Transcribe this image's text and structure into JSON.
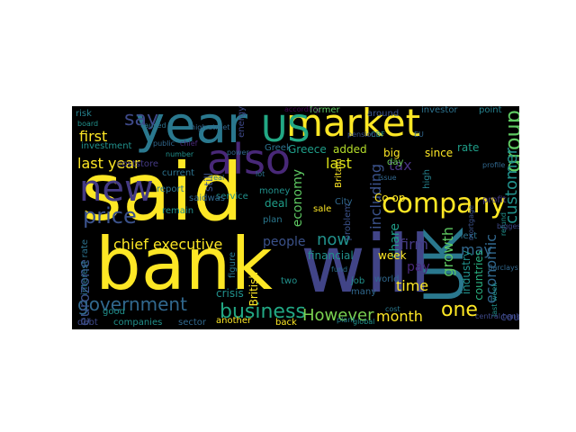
{
  "words": [
    {
      "text": "said",
      "color": "#fde725"
    },
    {
      "text": "bank",
      "color": "#fde725"
    },
    {
      "text": "will",
      "color": "#414487"
    },
    {
      "text": "year",
      "color": "#2a788e"
    },
    {
      "text": "UK",
      "color": "#2a788e"
    },
    {
      "text": "market",
      "color": "#fde725"
    },
    {
      "text": "US",
      "color": "#22a884"
    },
    {
      "text": "also",
      "color": "#482878"
    },
    {
      "text": "new",
      "color": "#443a83"
    },
    {
      "text": "company",
      "color": "#fde725"
    },
    {
      "text": "price",
      "color": "#3b528b"
    },
    {
      "text": "government",
      "color": "#31688e"
    },
    {
      "text": "business",
      "color": "#22a884"
    },
    {
      "text": "However",
      "color": "#7ad151"
    },
    {
      "text": "month",
      "color": "#fde725"
    },
    {
      "text": "one",
      "color": "#fde725"
    },
    {
      "text": "chief executive",
      "color": "#fde725"
    },
    {
      "text": "last year",
      "color": "#fde725"
    },
    {
      "text": "first",
      "color": "#fde725"
    },
    {
      "text": "say",
      "color": "#3e4989"
    },
    {
      "text": "group",
      "color": "#5ec962"
    },
    {
      "text": "customer",
      "color": "#21918c"
    },
    {
      "text": "growth",
      "color": "#5ec962"
    },
    {
      "text": "economy",
      "color": "#5ec962"
    },
    {
      "text": "last",
      "color": "#dde318"
    },
    {
      "text": "now",
      "color": "#21918c"
    },
    {
      "text": "people",
      "color": "#3b528b"
    },
    {
      "text": "eurozone",
      "color": "#3b528b"
    },
    {
      "text": "tax",
      "color": "#46327e"
    },
    {
      "text": "firm",
      "color": "#443a83"
    },
    {
      "text": "may",
      "color": "#31688e"
    },
    {
      "text": "including",
      "color": "#3b528b"
    },
    {
      "text": "share",
      "color": "#1f9e89"
    },
    {
      "text": "time",
      "color": "#fde725"
    },
    {
      "text": "pay",
      "color": "#482878"
    },
    {
      "text": "economic",
      "color": "#31688e"
    },
    {
      "text": "industry",
      "color": "#21918c"
    },
    {
      "text": "countries",
      "color": "#29af7f"
    },
    {
      "text": "country",
      "color": "#3e4989"
    },
    {
      "text": "interest rate",
      "color": "#2c728e"
    },
    {
      "text": "investment",
      "color": "#21918c"
    },
    {
      "text": "risk",
      "color": "#26828e"
    },
    {
      "text": "rate",
      "color": "#1f9e89"
    },
    {
      "text": "investor",
      "color": "#2c728e"
    },
    {
      "text": "former",
      "color": "#5ec962"
    },
    {
      "text": "around",
      "color": "#3b528b"
    },
    {
      "text": "point",
      "color": "#26828e"
    },
    {
      "text": "big",
      "color": "#fde725"
    },
    {
      "text": "since",
      "color": "#fde725"
    },
    {
      "text": "added",
      "color": "#b5de2b"
    },
    {
      "text": "Greece",
      "color": "#1f9e89"
    },
    {
      "text": "day",
      "color": "#6ece58"
    },
    {
      "text": "Co op",
      "color": "#fde725"
    },
    {
      "text": "coststore",
      "color": "#443a83"
    },
    {
      "text": "report",
      "color": "#2c728e"
    },
    {
      "text": "deal",
      "color": "#1f9e89"
    },
    {
      "text": "plan",
      "color": "#2a788e"
    },
    {
      "text": "financial",
      "color": "#21918c"
    },
    {
      "text": "job",
      "color": "#21918c"
    },
    {
      "text": "two",
      "color": "#21918c"
    },
    {
      "text": "crisis",
      "color": "#21918c"
    },
    {
      "text": "British",
      "color": "#fde725"
    },
    {
      "text": "sector",
      "color": "#31688e"
    },
    {
      "text": "another",
      "color": "#fde725"
    },
    {
      "text": "back",
      "color": "#fde725"
    },
    {
      "text": "companies",
      "color": "#21918c"
    },
    {
      "text": "debt",
      "color": "#3e4989"
    },
    {
      "text": "week",
      "color": "#fde725"
    },
    {
      "text": "last week",
      "color": "#21918c"
    },
    {
      "text": "next",
      "color": "#2c728e"
    },
    {
      "text": "high",
      "color": "#26828e"
    },
    {
      "text": "profit",
      "color": "#443a83"
    },
    {
      "text": "good",
      "color": "#21918c"
    },
    {
      "text": "service",
      "color": "#21918c"
    },
    {
      "text": "money",
      "color": "#21918c"
    },
    {
      "text": "sale",
      "color": "#fde725"
    },
    {
      "text": "many",
      "color": "#31688e"
    },
    {
      "text": "Britain",
      "color": "#fde725"
    },
    {
      "text": "problem",
      "color": "#3b528b"
    },
    {
      "text": "energy",
      "color": "#3e4989"
    },
    {
      "text": "Greek",
      "color": "#2c728e"
    },
    {
      "text": "board",
      "color": "#21918c"
    },
    {
      "text": "figure",
      "color": "#2a788e"
    },
    {
      "text": "still",
      "color": "#3b528b"
    },
    {
      "text": "remain",
      "color": "#21918c"
    },
    {
      "text": "saidwas",
      "color": "#31688e"
    },
    {
      "text": "public",
      "color": "#31688e"
    },
    {
      "text": "world",
      "color": "#31688e"
    },
    {
      "text": "City",
      "color": "#31688e"
    },
    {
      "text": "refund",
      "color": "#21918c"
    },
    {
      "text": "current",
      "color": "#2c728e"
    },
    {
      "text": "global",
      "color": "#21918c"
    },
    {
      "text": "real",
      "color": "#2c728e"
    },
    {
      "text": "CBF",
      "color": "#21918c"
    },
    {
      "text": "cost",
      "color": "#2a788e"
    },
    {
      "text": "Barclays",
      "color": "#31688e"
    },
    {
      "text": "profile",
      "color": "#31688e"
    },
    {
      "text": "biggest",
      "color": "#3e4989"
    },
    {
      "text": "fund",
      "color": "#2c728e"
    },
    {
      "text": "according",
      "color": "#440154"
    },
    {
      "text": "EU",
      "color": "#31688e"
    },
    {
      "text": "caused",
      "color": "#2c728e"
    },
    {
      "text": "plant",
      "color": "#26828e"
    },
    {
      "text": "issue",
      "color": "#31688e"
    },
    {
      "text": "high street",
      "color": "#31688e"
    },
    {
      "text": "central bank",
      "color": "#3e4989"
    },
    {
      "text": "chief",
      "color": "#482878"
    },
    {
      "text": "mortgage",
      "color": "#3b528b"
    },
    {
      "text": "number",
      "color": "#21918c"
    },
    {
      "text": "lot",
      "color": "#2c728e"
    },
    {
      "text": "pension",
      "color": "#3b528b"
    },
    {
      "text": "power",
      "color": "#31688e"
    }
  ]
}
